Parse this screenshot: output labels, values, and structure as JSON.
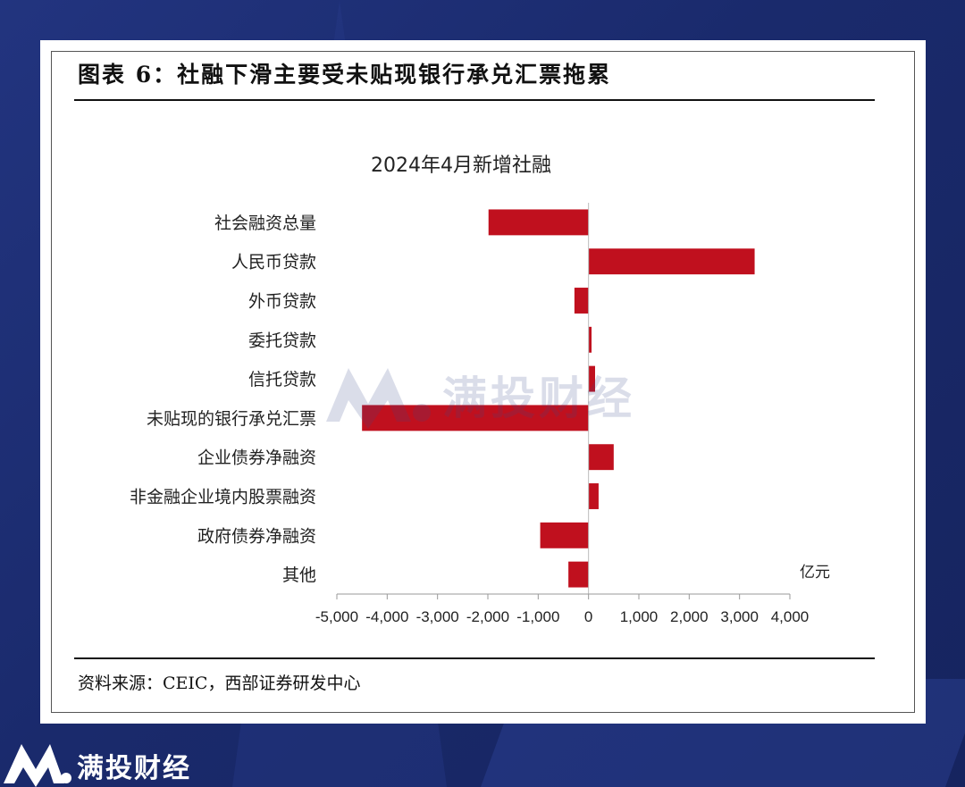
{
  "figure": {
    "title": "图表 6：社融下滑主要受未贴现银行承兑汇票拖累",
    "source": "资料来源：CEIC，西部证券研发中心"
  },
  "brand": {
    "name": "满投财经",
    "watermark": "满投财经"
  },
  "colors": {
    "bar": "#c0101e",
    "background": "#1b2a6e",
    "card": "#ffffff"
  },
  "chart_data": {
    "type": "bar",
    "orientation": "horizontal",
    "title": "2024年4月新增社融",
    "unit_label": "亿元",
    "categories": [
      "社会融资总量",
      "人民币贷款",
      "外币贷款",
      "委托贷款",
      "信托贷款",
      "未贴现的银行承兑汇票",
      "企业债券净融资",
      "非金融企业境内股票融资",
      "政府债券净融资",
      "其他"
    ],
    "values": [
      -1987,
      3300,
      -280,
      60,
      130,
      -4500,
      500,
      200,
      -960,
      -400
    ],
    "xlim": [
      -5000,
      4000
    ],
    "ticks": [
      "-5,000",
      "-4,000",
      "-3,000",
      "-2,000",
      "-1,000",
      "0",
      "1,000",
      "2,000",
      "3,000",
      "4,000"
    ],
    "tick_values": [
      -5000,
      -4000,
      -3000,
      -2000,
      -1000,
      0,
      1000,
      2000,
      3000,
      4000
    ],
    "grid": false,
    "legend": "none"
  }
}
